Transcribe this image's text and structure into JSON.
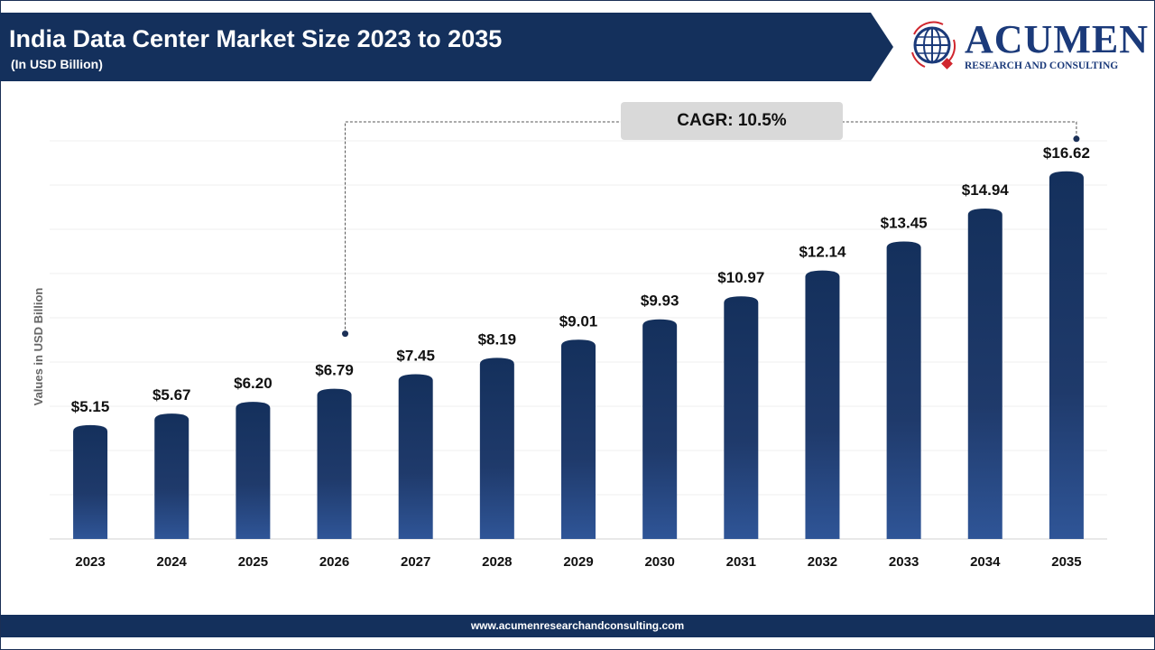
{
  "header": {
    "title": "India Data Center Market Size 2023 to 2035",
    "subtitle": "(In USD Billion)"
  },
  "logo": {
    "name": "ACUMEN",
    "tagline": "RESEARCH AND CONSULTING"
  },
  "footer": {
    "url": "www.acumenresearchandconsulting.com"
  },
  "colors": {
    "banner": "#14305c",
    "bar_top": "#14305c",
    "bar_bottom": "#2f5597",
    "logo": "#1b3a7a",
    "logo_accent": "#d0262e"
  },
  "chart_data": {
    "type": "bar",
    "title": "India Data Center Market Size 2023 to 2035",
    "subtitle": "(In USD Billion)",
    "ylabel": "Values in USD Billion",
    "xlabel": "",
    "categories": [
      "2023",
      "2024",
      "2025",
      "2026",
      "2027",
      "2028",
      "2029",
      "2030",
      "2031",
      "2032",
      "2033",
      "2034",
      "2035"
    ],
    "values": [
      5.15,
      5.67,
      6.2,
      6.79,
      7.45,
      8.19,
      9.01,
      9.93,
      10.97,
      12.14,
      13.45,
      14.94,
      16.62
    ],
    "data_labels": [
      "$5.15",
      "$5.67",
      "$6.20",
      "$6.79",
      "$7.45",
      "$8.19",
      "$9.01",
      "$9.93",
      "$10.97",
      "$12.14",
      "$13.45",
      "$14.94",
      "$16.62"
    ],
    "ylim": [
      0,
      18
    ],
    "grid": true,
    "annotation": {
      "text": "CAGR: 10.5%",
      "from": "2026",
      "to": "2035"
    }
  }
}
